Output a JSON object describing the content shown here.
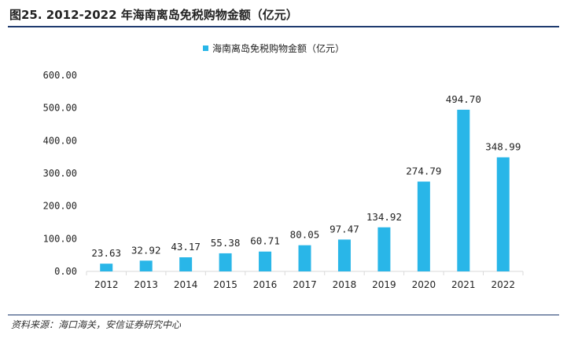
{
  "figure": {
    "title": "图25. 2012-2022 年海南离岛免税购物金额（亿元）",
    "source": "资料来源：海口海关，安信证券研究中心"
  },
  "colors": {
    "bar": "#29b6e8",
    "rule": "#1f3b6f",
    "axis": "#d9d9d9"
  },
  "chart_data": {
    "type": "bar",
    "title": "",
    "xlabel": "",
    "ylabel": "",
    "legend": [
      "海南离岛免税购物金额（亿元）"
    ],
    "legend_position": "top-center",
    "grid": false,
    "categories": [
      "2012",
      "2013",
      "2014",
      "2015",
      "2016",
      "2017",
      "2018",
      "2019",
      "2020",
      "2021",
      "2022"
    ],
    "series": [
      {
        "name": "海南离岛免税购物金额（亿元）",
        "values": [
          23.63,
          32.92,
          43.17,
          55.38,
          60.71,
          80.05,
          97.47,
          134.92,
          274.79,
          494.7,
          348.99
        ]
      }
    ],
    "data_labels": [
      "23.63",
      "32.92",
      "43.17",
      "55.38",
      "60.71",
      "80.05",
      "97.47",
      "134.92",
      "274.79",
      "494.70",
      "348.99"
    ],
    "ylim": [
      0,
      600
    ],
    "yticks": [
      0,
      100,
      200,
      300,
      400,
      500,
      600
    ],
    "ytick_labels": [
      "0.00",
      "100.00",
      "200.00",
      "300.00",
      "400.00",
      "500.00",
      "600.00"
    ]
  }
}
